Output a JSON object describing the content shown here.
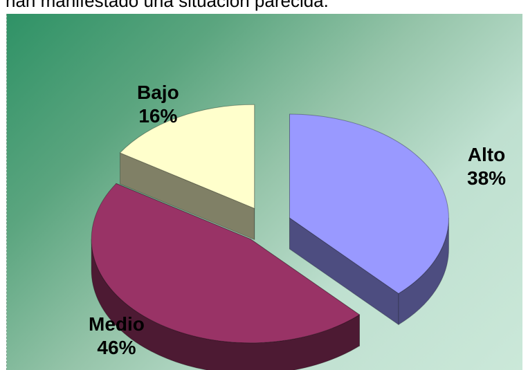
{
  "top_text": "han manifestado una situación parecida.",
  "chart_data": {
    "type": "pie",
    "title": "",
    "slices": [
      {
        "name": "Alto",
        "value": 38,
        "label": "38%",
        "color": "#9999ff",
        "side_color": "#4d4d80"
      },
      {
        "name": "Medio",
        "value": 46,
        "label": "46%",
        "color": "#993366",
        "side_color": "#4d1a33"
      },
      {
        "name": "Bajo",
        "value": 16,
        "label": "16%",
        "color": "#ffffcc",
        "side_color": "#808066"
      }
    ],
    "three_d": true,
    "exploded": true
  }
}
